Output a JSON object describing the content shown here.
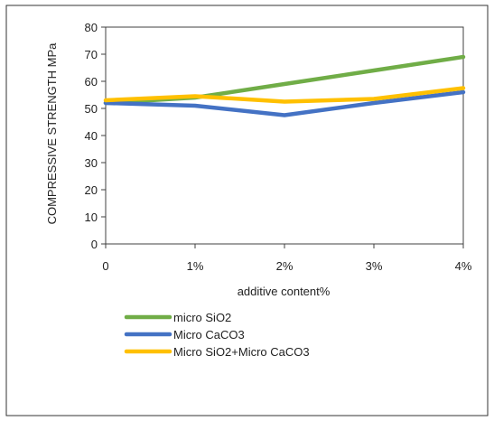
{
  "chart_data": {
    "type": "line",
    "categories": [
      "0",
      "1%",
      "2%",
      "3%",
      "4%"
    ],
    "series": [
      {
        "name": "micro SiO2",
        "color": "#70ad47",
        "values": [
          52,
          54,
          59,
          64,
          69
        ]
      },
      {
        "name": "Micro CaCO3",
        "color": "#4472c4",
        "values": [
          52,
          51,
          47.5,
          52,
          56
        ]
      },
      {
        "name": "Micro SiO2+Micro CaCO3",
        "color": "#ffc000",
        "values": [
          53,
          54.5,
          52.5,
          53.5,
          57.5
        ]
      }
    ],
    "title": "",
    "xlabel": "additive content%",
    "ylabel": "COMPRESSIVE STRENGTH MPa",
    "ylim": [
      0,
      80
    ],
    "yticks": [
      0,
      10,
      20,
      30,
      40,
      50,
      60,
      70,
      80
    ],
    "grid": false,
    "legend_position": "bottom-left"
  }
}
